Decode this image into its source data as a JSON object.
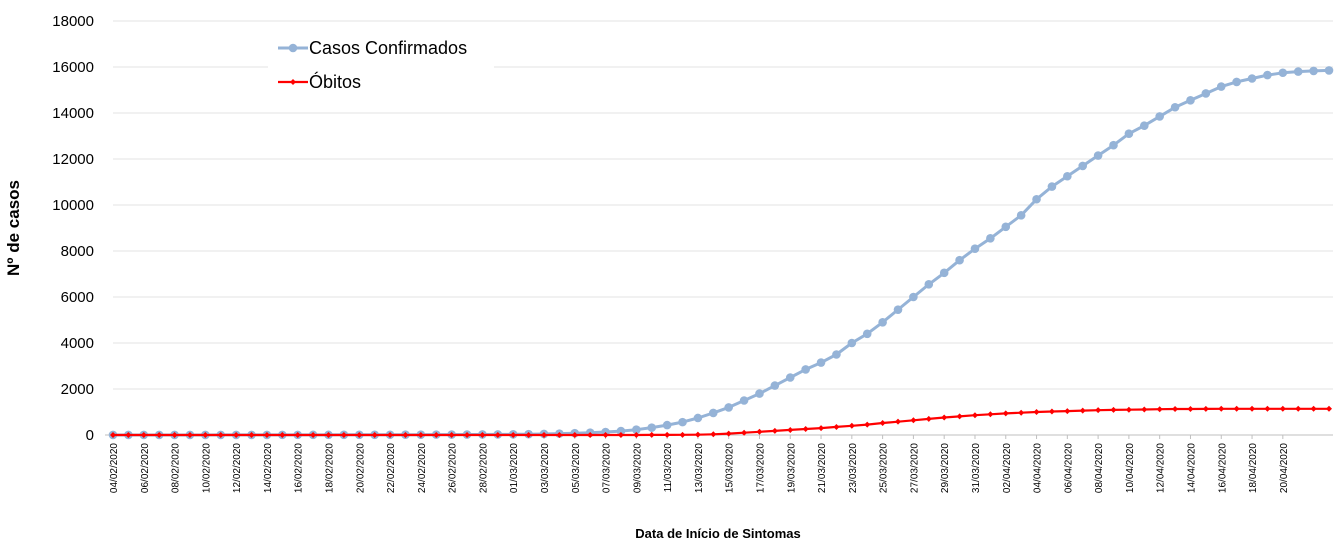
{
  "chart_data": {
    "type": "line",
    "title": "",
    "xlabel": "Data de Início de Sintomas",
    "ylabel": "Nº de casos",
    "ylim": [
      0,
      18000
    ],
    "yticks": [
      0,
      2000,
      4000,
      6000,
      8000,
      10000,
      12000,
      14000,
      16000,
      18000
    ],
    "grid": true,
    "legend_position": "top-left",
    "x_tick_labels": [
      "04/02/2020",
      "06/02/2020",
      "08/02/2020",
      "10/02/2020",
      "12/02/2020",
      "14/02/2020",
      "16/02/2020",
      "18/02/2020",
      "20/02/2020",
      "22/02/2020",
      "24/02/2020",
      "26/02/2020",
      "28/02/2020",
      "01/03/2020",
      "03/03/2020",
      "05/03/2020",
      "07/03/2020",
      "09/03/2020",
      "11/03/2020",
      "13/03/2020",
      "15/03/2020",
      "17/03/2020",
      "19/03/2020",
      "21/03/2020",
      "23/03/2020",
      "25/03/2020",
      "27/03/2020",
      "29/03/2020",
      "31/03/2020",
      "02/04/2020",
      "04/04/2020",
      "06/04/2020",
      "08/04/2020",
      "10/04/2020",
      "12/04/2020",
      "14/04/2020",
      "16/04/2020",
      "18/04/2020",
      "20/04/2020"
    ],
    "series": [
      {
        "name": "Casos Confirmados",
        "color": "#95b3d7",
        "marker": "circle",
        "values": [
          1,
          1,
          1,
          1,
          2,
          2,
          2,
          3,
          3,
          4,
          4,
          5,
          5,
          6,
          6,
          7,
          8,
          9,
          10,
          12,
          14,
          16,
          18,
          20,
          23,
          26,
          30,
          36,
          45,
          60,
          80,
          100,
          130,
          170,
          230,
          320,
          430,
          560,
          740,
          960,
          1200,
          1500,
          1800,
          2150,
          2500,
          2850,
          3150,
          3500,
          4000,
          4400,
          4900,
          5450,
          6000,
          6550,
          7050,
          7600,
          8100,
          8550,
          9050,
          9550,
          10250,
          10800,
          11250,
          11700,
          12150,
          12600,
          13100,
          13450,
          13850,
          14250,
          14550,
          14850,
          15150,
          15350,
          15500,
          15650,
          15750,
          15800,
          15830,
          15850
        ]
      },
      {
        "name": "Óbitos",
        "color": "#ff0000",
        "marker": "diamond",
        "values": [
          0,
          0,
          0,
          0,
          0,
          0,
          0,
          0,
          0,
          0,
          0,
          0,
          0,
          0,
          0,
          0,
          0,
          0,
          0,
          0,
          0,
          0,
          0,
          0,
          0,
          0,
          0,
          0,
          0,
          0,
          0,
          0,
          0,
          1,
          2,
          3,
          5,
          8,
          15,
          30,
          60,
          100,
          140,
          180,
          220,
          260,
          300,
          350,
          400,
          450,
          520,
          580,
          640,
          700,
          760,
          810,
          860,
          900,
          940,
          970,
          1000,
          1020,
          1040,
          1060,
          1080,
          1090,
          1100,
          1110,
          1120,
          1130,
          1130,
          1135,
          1140,
          1140,
          1140,
          1140,
          1140,
          1140,
          1140,
          1140
        ]
      }
    ]
  }
}
